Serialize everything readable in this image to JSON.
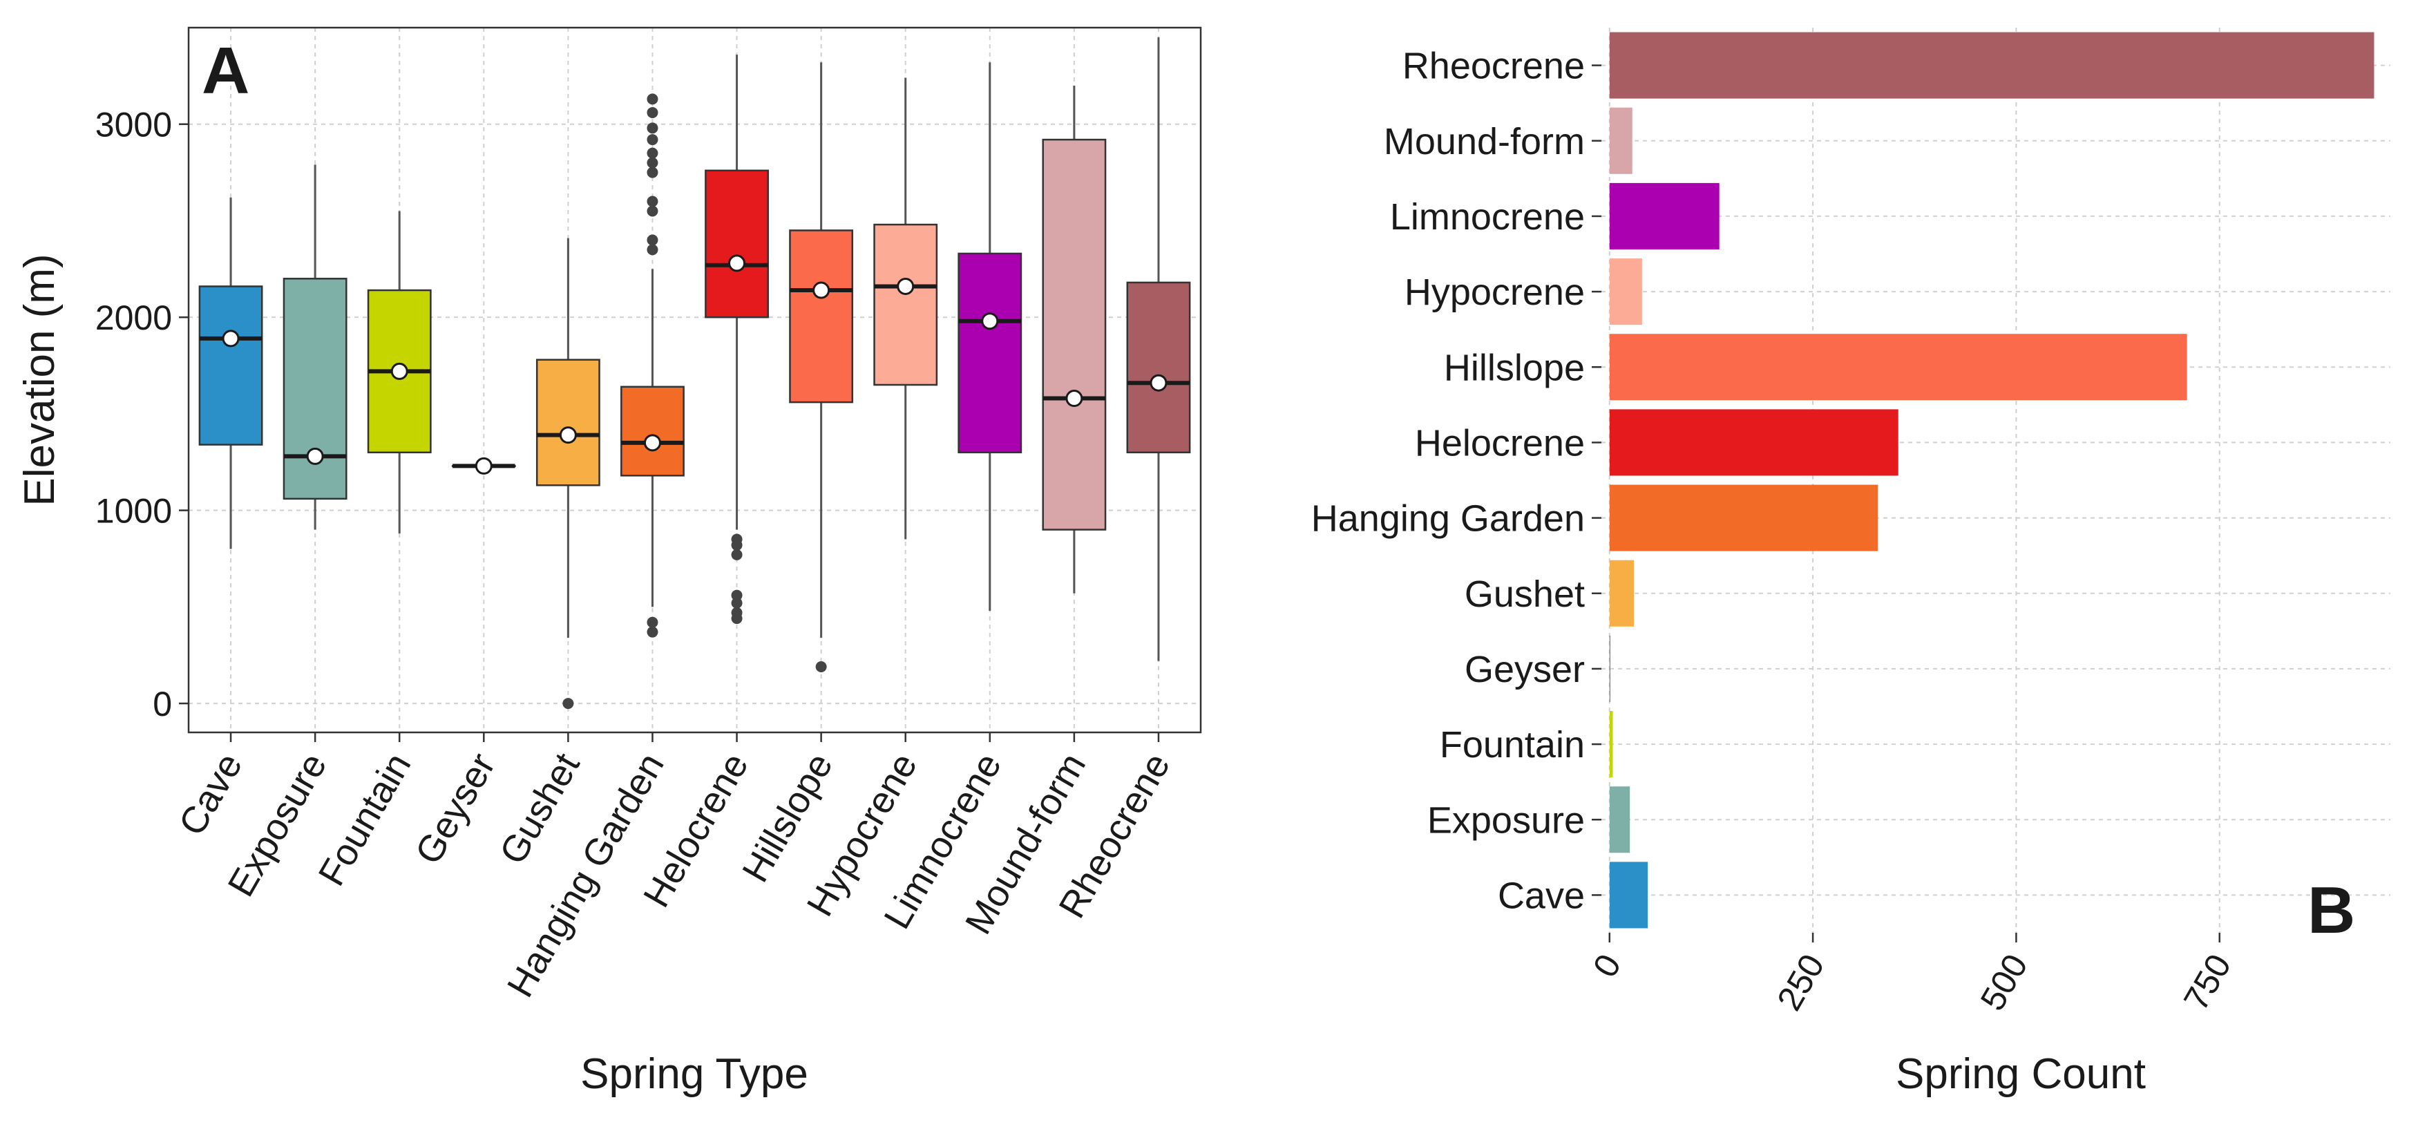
{
  "chart_data": [
    {
      "panel": "A",
      "type": "boxplot",
      "xlabel": "Spring Type",
      "ylabel": "Elevation (m)",
      "ylim": [
        -150,
        3500
      ],
      "yticks": [
        0,
        1000,
        2000,
        3000
      ],
      "grid": true,
      "categories": [
        "Cave",
        "Exposure",
        "Fountain",
        "Geyser",
        "Gushet",
        "Hanging Garden",
        "Helocrene",
        "Hillslope",
        "Hypocrene",
        "Limnocrene",
        "Mound-form",
        "Rheocrene"
      ],
      "colors": [
        "#2b8fc8",
        "#7fb0a8",
        "#c5d500",
        "#777777",
        "#f7ae44",
        "#f26c27",
        "#e41a1c",
        "#fb6a4a",
        "#fcab96",
        "#aa00b0",
        "#d8a6a8",
        "#a85d62"
      ],
      "boxes": [
        {
          "whisker_low": 800,
          "q1": 1340,
          "median": 1890,
          "q3": 2160,
          "whisker_high": 2620,
          "mean": 1890,
          "outliers": []
        },
        {
          "whisker_low": 900,
          "q1": 1060,
          "median": 1280,
          "q3": 2200,
          "whisker_high": 2790,
          "mean": 1280,
          "outliers": []
        },
        {
          "whisker_low": 880,
          "q1": 1300,
          "median": 1720,
          "q3": 2140,
          "whisker_high": 2550,
          "mean": 1720,
          "outliers": []
        },
        {
          "whisker_low": 1230,
          "q1": 1230,
          "median": 1230,
          "q3": 1230,
          "whisker_high": 1230,
          "mean": 1230,
          "outliers": []
        },
        {
          "whisker_low": 340,
          "q1": 1130,
          "median": 1390,
          "q3": 1780,
          "whisker_high": 2410,
          "mean": 1390,
          "outliers": [
            0
          ]
        },
        {
          "whisker_low": 500,
          "q1": 1180,
          "median": 1350,
          "q3": 1640,
          "whisker_high": 2250,
          "mean": 1350,
          "outliers": [
            370,
            420,
            2350,
            2400,
            2550,
            2600,
            2750,
            2800,
            2850,
            2920,
            2980,
            3060,
            3130
          ]
        },
        {
          "whisker_low": 900,
          "q1": 2000,
          "median": 2270,
          "q3": 2760,
          "whisker_high": 3360,
          "mean": 2280,
          "outliers": [
            440,
            470,
            520,
            560,
            770,
            820,
            850
          ]
        },
        {
          "whisker_low": 340,
          "q1": 1560,
          "median": 2140,
          "q3": 2450,
          "whisker_high": 3320,
          "mean": 2140,
          "outliers": [
            190
          ]
        },
        {
          "whisker_low": 850,
          "q1": 1650,
          "median": 2160,
          "q3": 2480,
          "whisker_high": 3240,
          "mean": 2160,
          "outliers": []
        },
        {
          "whisker_low": 480,
          "q1": 1300,
          "median": 1980,
          "q3": 2330,
          "whisker_high": 3320,
          "mean": 1980,
          "outliers": []
        },
        {
          "whisker_low": 570,
          "q1": 900,
          "median": 1580,
          "q3": 2920,
          "whisker_high": 3200,
          "mean": 1580,
          "outliers": []
        },
        {
          "whisker_low": 220,
          "q1": 1300,
          "median": 1660,
          "q3": 2180,
          "whisker_high": 3450,
          "mean": 1660,
          "outliers": []
        }
      ]
    },
    {
      "panel": "B",
      "type": "bar",
      "orientation": "horizontal",
      "xlabel": "Spring Count",
      "ylabel": "",
      "xlim": [
        -10,
        960
      ],
      "xticks": [
        0,
        250,
        500,
        750
      ],
      "grid": true,
      "categories": [
        "Rheocrene",
        "Mound-form",
        "Limnocrene",
        "Hypocrene",
        "Hillslope",
        "Helocrene",
        "Hanging Garden",
        "Gushet",
        "Geyser",
        "Fountain",
        "Exposure",
        "Cave"
      ],
      "values": [
        940,
        28,
        135,
        40,
        710,
        355,
        330,
        30,
        1,
        4,
        25,
        47
      ],
      "colors": [
        "#a85d62",
        "#d8a6a8",
        "#aa00b0",
        "#fcab96",
        "#fb6a4a",
        "#e41a1c",
        "#f26c27",
        "#f7ae44",
        "#777777",
        "#c5d500",
        "#7fb0a8",
        "#2b8fc8"
      ]
    }
  ],
  "labels": {
    "panelA": "A",
    "panelB": "B",
    "A_yticks": [
      "0",
      "1000",
      "2000",
      "3000"
    ],
    "B_xticks": [
      "0",
      "250",
      "500",
      "750"
    ]
  }
}
